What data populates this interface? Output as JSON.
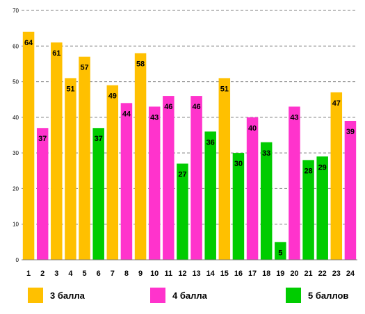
{
  "chart_data": {
    "type": "bar",
    "categories": [
      "1",
      "2",
      "3",
      "4",
      "5",
      "6",
      "7",
      "8",
      "9",
      "10",
      "11",
      "12",
      "13",
      "14",
      "15",
      "16",
      "17",
      "18",
      "19",
      "20",
      "21",
      "22",
      "23",
      "24"
    ],
    "values": [
      64,
      37,
      61,
      51,
      57,
      37,
      49,
      44,
      58,
      43,
      46,
      27,
      46,
      36,
      51,
      30,
      40,
      33,
      5,
      43,
      28,
      29,
      47,
      39
    ],
    "groups": [
      3,
      4,
      3,
      3,
      3,
      5,
      3,
      4,
      3,
      4,
      4,
      5,
      4,
      5,
      3,
      5,
      4,
      5,
      5,
      4,
      5,
      5,
      3,
      4
    ],
    "ylim": [
      0,
      70
    ],
    "yticks": [
      0,
      10,
      20,
      30,
      40,
      50,
      60,
      70
    ],
    "grid": true,
    "legend_position": "bottom",
    "legend": [
      {
        "group": 3,
        "label": "3 балла",
        "color": "#FFC000"
      },
      {
        "group": 4,
        "label": "4 балла",
        "color": "#FF33CC"
      },
      {
        "group": 5,
        "label": "5 баллов",
        "color": "#00CC00"
      }
    ]
  }
}
